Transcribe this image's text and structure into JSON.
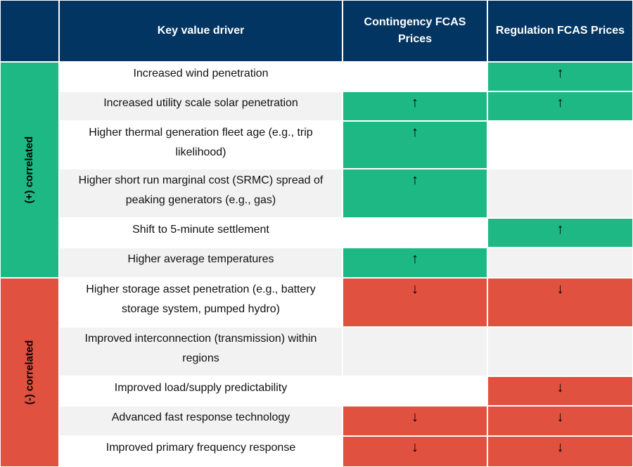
{
  "header": {
    "group_col": "",
    "driver_col": "Key value driver",
    "contingency_col": "Contingency FCAS Prices",
    "regulation_col": "Regulation FCAS Prices"
  },
  "colors": {
    "header": "#023561",
    "positive": "#1db884",
    "negative": "#e05140",
    "row_alt": "#f2f2f3"
  },
  "groups": [
    {
      "label": "(+) correlated",
      "color": "#1db884",
      "rows": 6
    },
    {
      "label": "(-) correlated",
      "color": "#e05140",
      "rows": 5
    }
  ],
  "rows": [
    {
      "driver": "Increased wind penetration",
      "contingency": null,
      "regulation": "up"
    },
    {
      "driver": "Increased utility scale solar penetration",
      "contingency": "up",
      "regulation": "up"
    },
    {
      "driver": "Higher thermal generation fleet age (e.g., trip likelihood)",
      "contingency": "up",
      "regulation": null
    },
    {
      "driver": "Higher short run marginal cost (SRMC) spread of peaking generators (e.g., gas)",
      "contingency": "up",
      "regulation": null
    },
    {
      "driver": "Shift to 5-minute settlement",
      "contingency": null,
      "regulation": "up"
    },
    {
      "driver": "Higher average temperatures",
      "contingency": "up",
      "regulation": null
    },
    {
      "driver": "Higher storage asset penetration (e.g., battery storage system, pumped hydro)",
      "contingency": "down",
      "regulation": "down"
    },
    {
      "driver": "Improved interconnection (transmission) within regions",
      "contingency": null,
      "regulation": null
    },
    {
      "driver": "Improved load/supply predictability",
      "contingency": null,
      "regulation": "down"
    },
    {
      "driver": "Advanced fast response technology",
      "contingency": "down",
      "regulation": "down"
    },
    {
      "driver": "Improved primary frequency response",
      "contingency": "down",
      "regulation": "down"
    }
  ]
}
